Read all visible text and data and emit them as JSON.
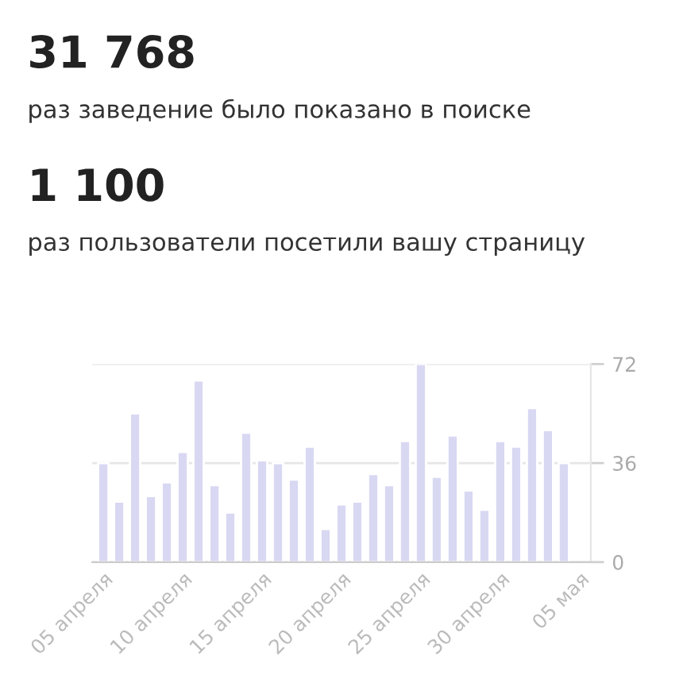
{
  "chart_data": {
    "type": "bar",
    "title": "31 768",
    "subtitle": "раз заведение было показано в поиске",
    "annotations": [
      "1 100",
      "раз пользователи посетили вашу страницу"
    ],
    "categories": [
      "05 апреля",
      null,
      null,
      null,
      null,
      "10 апреля",
      null,
      null,
      null,
      null,
      "15 апреля",
      null,
      null,
      null,
      null,
      "20 апреля",
      null,
      null,
      null,
      null,
      "25 апреля",
      null,
      null,
      null,
      null,
      "30 апреля",
      null,
      null,
      null,
      null,
      "05 мая"
    ],
    "values": [
      36,
      22,
      54,
      24,
      29,
      40,
      66,
      28,
      18,
      47,
      37,
      36,
      30,
      42,
      12,
      21,
      22,
      32,
      28,
      44,
      72,
      31,
      46,
      26,
      19,
      44,
      42,
      56,
      48,
      36,
      null
    ],
    "color": "#d8d8f3",
    "ylim": [
      0,
      72
    ],
    "yticks": [
      0,
      36,
      72
    ],
    "grid": "y"
  }
}
